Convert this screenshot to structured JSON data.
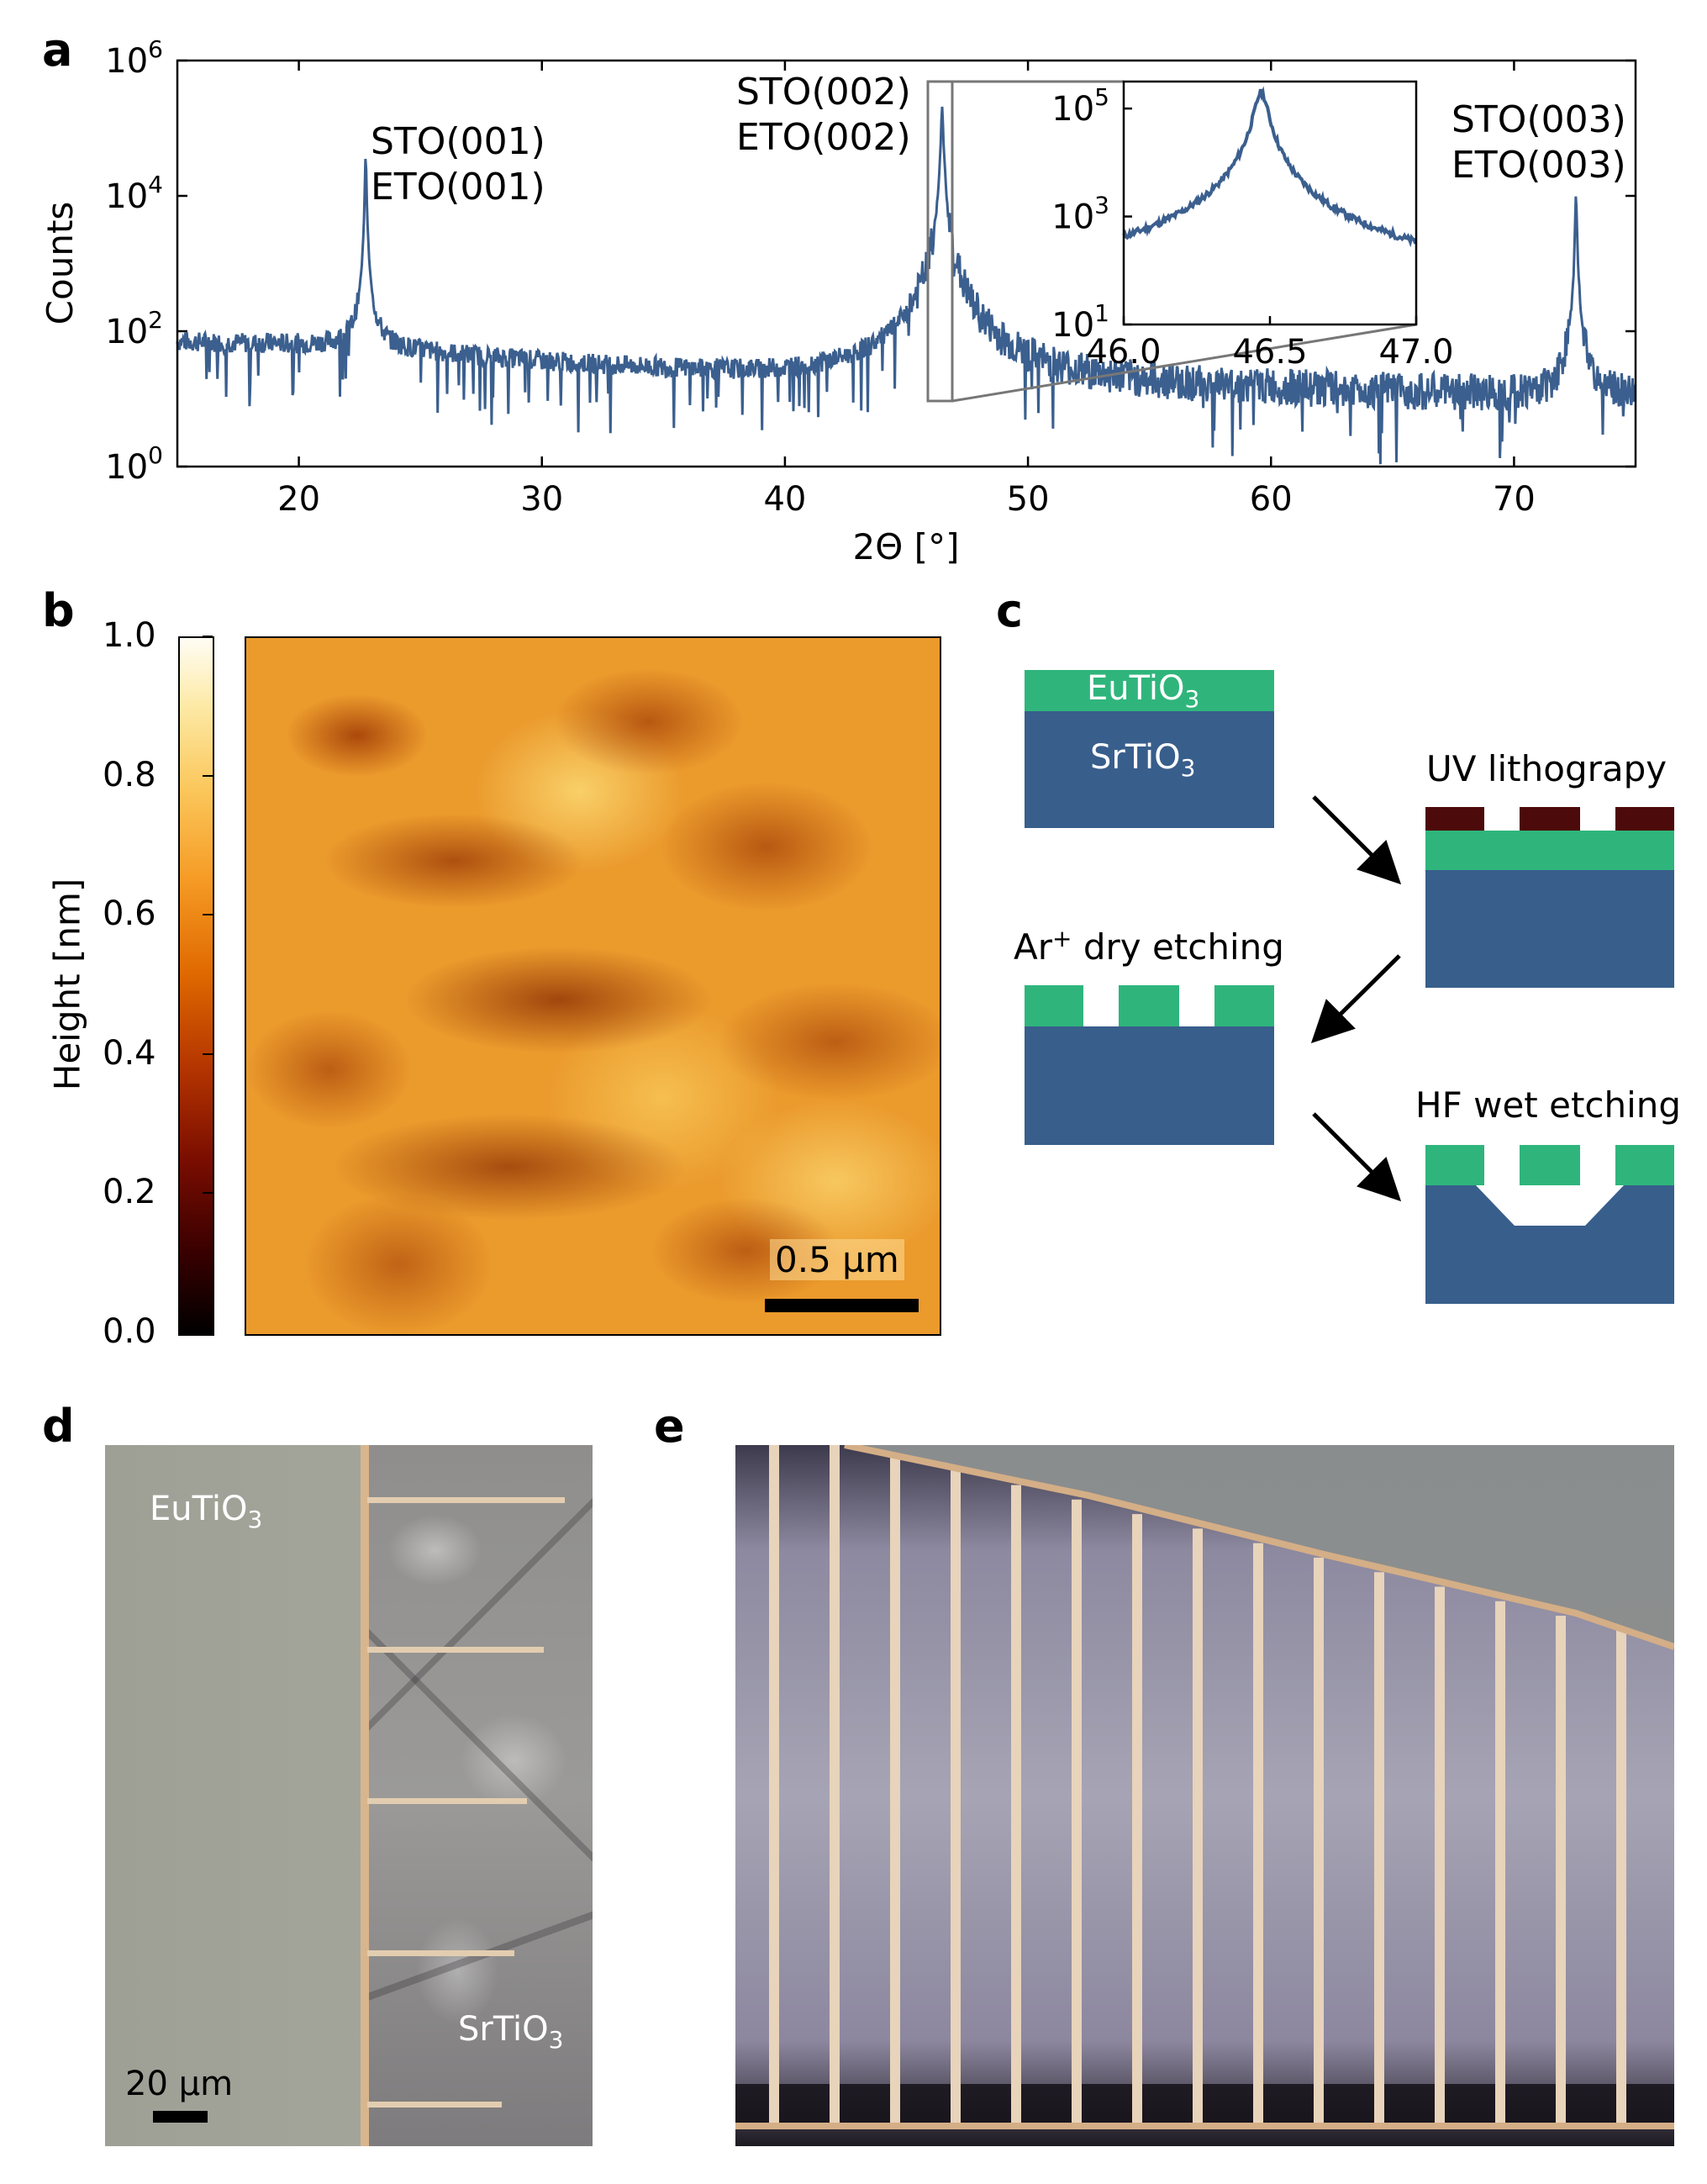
{
  "panels": {
    "a": "a",
    "b": "b",
    "c": "c",
    "d": "d",
    "e": "e"
  },
  "colors": {
    "line": "#3b5f8e",
    "substrate": "#385e8c",
    "film": "#2fb57c",
    "resist": "#4d0a0a"
  },
  "xrd": {
    "chart_data": {
      "type": "line",
      "xlabel": "2Θ [°]",
      "ylabel": "Counts",
      "xlim": [
        15,
        75
      ],
      "ylim_log10": [
        0,
        6
      ],
      "yscale": "log",
      "xticks": [
        "20",
        "30",
        "40",
        "50",
        "60",
        "70"
      ],
      "ytick_bases": [
        "10",
        "10",
        "10",
        "10"
      ],
      "ytick_exps": [
        "0",
        "2",
        "4",
        "6"
      ],
      "background": {
        "x": [
          15,
          22,
          30,
          40,
          50,
          60,
          70,
          75
        ],
        "y": [
          70,
          60,
          35,
          20,
          15,
          13,
          11,
          10
        ]
      },
      "peaks": [
        {
          "x": 22.75,
          "y": 40000
        },
        {
          "x": 46.47,
          "y": 200000
        },
        {
          "x": 72.55,
          "y": 10000
        }
      ]
    },
    "annotations": [
      {
        "line1": "STO(001)",
        "line2": "ETO(001)"
      },
      {
        "line1": "STO(002)",
        "line2": "ETO(002)"
      },
      {
        "line1": "STO(003)",
        "line2": "ETO(003)"
      }
    ],
    "inset": {
      "xlim": [
        46.0,
        47.0
      ],
      "ylim_log10": [
        1,
        5.5
      ],
      "xticks": [
        "46.0",
        "46.5",
        "47.0"
      ],
      "ytick_bases": [
        "10",
        "10",
        "10"
      ],
      "ytick_exps": [
        "1",
        "3",
        "5"
      ]
    }
  },
  "afm": {
    "colorbar_label": "Height [nm]",
    "colorbar_ticks": [
      "0.0",
      "0.2",
      "0.4",
      "0.6",
      "0.8",
      "1.0"
    ],
    "scalebar": "0.5 µm"
  },
  "process": {
    "eto": "EuTiO",
    "sto": "SrTiO",
    "sub3": "3",
    "uv": "UV lithograpy",
    "ar_pre": "Ar",
    "ar_sup": "+",
    "ar_post": " dry etching",
    "hf": "HF wet etching"
  },
  "micro_d": {
    "eto": "EuTiO",
    "sto": "SrTiO",
    "sub3": "3",
    "scalebar": "20 µm"
  }
}
